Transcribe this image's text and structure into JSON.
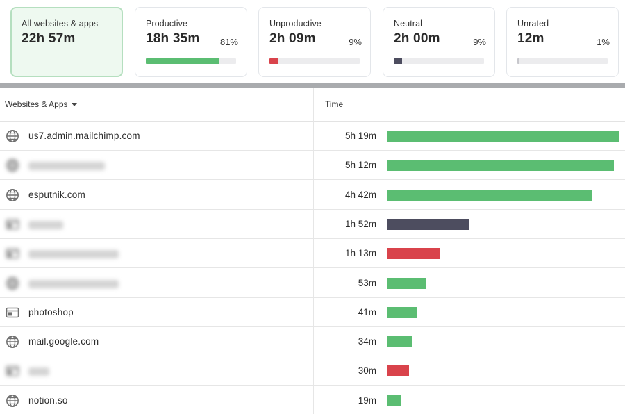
{
  "colors": {
    "productive": "#5bbd72",
    "unproductive": "#d9434b",
    "neutral": "#4d4d5f",
    "unrated": "#c7c7cc",
    "track": "#ececee",
    "active_card_bg": "#eef9f0"
  },
  "summary": {
    "all": {
      "label": "All websites & apps",
      "value": "22h 57m"
    },
    "productive": {
      "label": "Productive",
      "value": "18h 35m",
      "percent": "81%",
      "fraction": 0.81
    },
    "unproductive": {
      "label": "Unproductive",
      "value": "2h 09m",
      "percent": "9%",
      "fraction": 0.09
    },
    "neutral": {
      "label": "Neutral",
      "value": "2h 00m",
      "percent": "9%",
      "fraction": 0.09
    },
    "unrated": {
      "label": "Unrated",
      "value": "12m",
      "percent": "1%",
      "fraction": 0.01
    }
  },
  "table": {
    "col_sites": "Websites & Apps",
    "col_time": "Time",
    "max_minutes": 319,
    "rows": [
      {
        "name": "us7.admin.mailchimp.com",
        "time": "5h 19m",
        "minutes": 319,
        "category": "productive",
        "icon": "globe-icon",
        "blurred": false
      },
      {
        "name": "",
        "time": "5h 12m",
        "minutes": 312,
        "category": "productive",
        "icon": "globe-icon",
        "blurred": true
      },
      {
        "name": "esputnik.com",
        "time": "4h 42m",
        "minutes": 282,
        "category": "productive",
        "icon": "globe-icon",
        "blurred": false
      },
      {
        "name": "",
        "time": "1h 52m",
        "minutes": 112,
        "category": "neutral",
        "icon": "app-window-icon",
        "blurred": true
      },
      {
        "name": "",
        "time": "1h 13m",
        "minutes": 73,
        "category": "unproductive",
        "icon": "app-window-icon",
        "blurred": true
      },
      {
        "name": "",
        "time": "53m",
        "minutes": 53,
        "category": "productive",
        "icon": "globe-icon",
        "blurred": true
      },
      {
        "name": "photoshop",
        "time": "41m",
        "minutes": 41,
        "category": "productive",
        "icon": "app-window-icon",
        "blurred": false
      },
      {
        "name": "mail.google.com",
        "time": "34m",
        "minutes": 34,
        "category": "productive",
        "icon": "globe-icon",
        "blurred": false
      },
      {
        "name": "",
        "time": "30m",
        "minutes": 30,
        "category": "unproductive",
        "icon": "app-window-icon",
        "blurred": true
      },
      {
        "name": "notion.so",
        "time": "19m",
        "minutes": 19,
        "category": "productive",
        "icon": "globe-icon",
        "blurred": false
      }
    ]
  }
}
